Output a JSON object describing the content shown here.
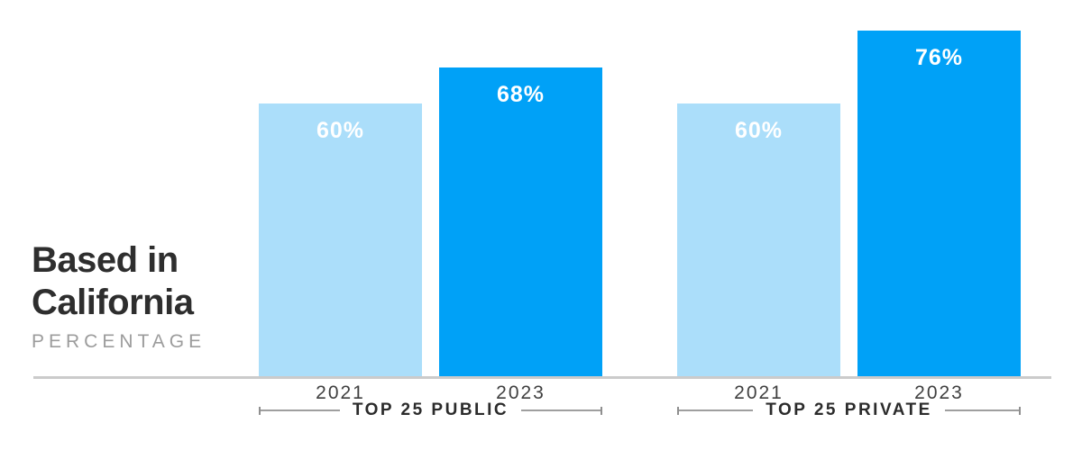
{
  "header": {
    "title": "Based in California",
    "subtitle": "PERCENTAGE"
  },
  "chart_data": {
    "type": "bar",
    "title": "Based in California",
    "subtitle": "PERCENTAGE",
    "unit": "%",
    "ylim": [
      0,
      80
    ],
    "grid": false,
    "legend": "none",
    "value_labels_position": "inside-top",
    "categories": [
      "2021",
      "2023"
    ],
    "groups": [
      {
        "label": "TOP 25 PUBLIC",
        "categories": [
          "2021",
          "2023"
        ],
        "values": [
          60,
          68
        ],
        "value_labels": [
          "60%",
          "68%"
        ]
      },
      {
        "label": "TOP 25 PRIVATE",
        "categories": [
          "2021",
          "2023"
        ],
        "values": [
          60,
          76
        ],
        "value_labels": [
          "60%",
          "76%"
        ]
      }
    ],
    "series_colors": {
      "2021": "#abdefa",
      "2023": "#00a1f7"
    },
    "value_label_text_color": "#ffffff"
  },
  "colors": {
    "background": "#ffffff",
    "title_text": "#2e2e2e",
    "subtitle_text": "#9c9c9c",
    "axis_line": "#cbcbcb",
    "year_label_text": "#3f3f3f",
    "bracket_line": "#9f9f9f",
    "bracket_text": "#2b2b2b"
  }
}
